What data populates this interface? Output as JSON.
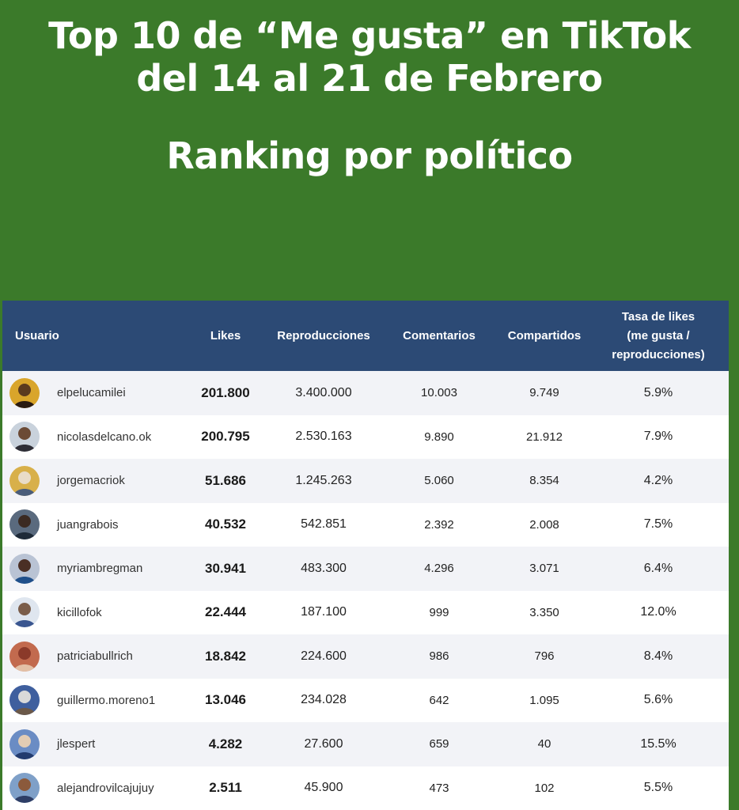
{
  "title": {
    "line1": "Top 10 de “Me gusta” en TikTok",
    "line2": "del 14 al 21 de Febrero",
    "subtitle": "Ranking por político"
  },
  "colors": {
    "background": "#3b7a2a",
    "header": "#2c4a75"
  },
  "table": {
    "headers": {
      "usuario": "Usuario",
      "likes": "Likes",
      "reproducciones": "Reproducciones",
      "comentarios": "Comentarios",
      "compartidos": "Compartidos",
      "tasa_line1": "Tasa de likes",
      "tasa_line2": "(me gusta /",
      "tasa_line3": "reproducciones)"
    },
    "rows": [
      {
        "user": "elpelucamilei",
        "avatar": "avatar-icon",
        "likes": "201.800",
        "reproducciones": "3.400.000",
        "comentarios": "10.003",
        "compartidos": "9.749",
        "tasa": "5.9%"
      },
      {
        "user": "nicolasdelcano.ok",
        "avatar": "avatar-icon",
        "likes": "200.795",
        "reproducciones": "2.530.163",
        "comentarios": "9.890",
        "compartidos": "21.912",
        "tasa": "7.9%"
      },
      {
        "user": "jorgemacriok",
        "avatar": "avatar-icon",
        "likes": "51.686",
        "reproducciones": "1.245.263",
        "comentarios": "5.060",
        "compartidos": "8.354",
        "tasa": "4.2%"
      },
      {
        "user": "juangrabois",
        "avatar": "avatar-icon",
        "likes": "40.532",
        "reproducciones": "542.851",
        "comentarios": "2.392",
        "compartidos": "2.008",
        "tasa": "7.5%"
      },
      {
        "user": "myriambregman",
        "avatar": "avatar-icon",
        "likes": "30.941",
        "reproducciones": "483.300",
        "comentarios": "4.296",
        "compartidos": "3.071",
        "tasa": "6.4%"
      },
      {
        "user": "kicillofok",
        "avatar": "avatar-icon",
        "likes": "22.444",
        "reproducciones": "187.100",
        "comentarios": "999",
        "compartidos": "3.350",
        "tasa": "12.0%"
      },
      {
        "user": "patriciabullrich",
        "avatar": "avatar-icon",
        "likes": "18.842",
        "reproducciones": "224.600",
        "comentarios": "986",
        "compartidos": "796",
        "tasa": "8.4%"
      },
      {
        "user": "guillermo.moreno1",
        "avatar": "avatar-icon",
        "likes": "13.046",
        "reproducciones": "234.028",
        "comentarios": "642",
        "compartidos": "1.095",
        "tasa": "5.6%"
      },
      {
        "user": "jlespert",
        "avatar": "avatar-icon",
        "likes": "4.282",
        "reproducciones": "27.600",
        "comentarios": "659",
        "compartidos": "40",
        "tasa": "15.5%"
      },
      {
        "user": "alejandrovilcajujuy",
        "avatar": "avatar-icon",
        "likes": "2.511",
        "reproducciones": "45.900",
        "comentarios": "473",
        "compartidos": "102",
        "tasa": "5.5%"
      }
    ]
  }
}
